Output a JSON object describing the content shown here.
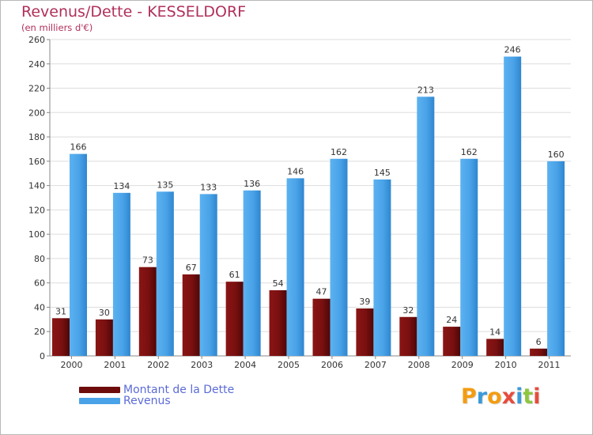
{
  "title": "Revenus/Dette - KESSELDORF",
  "subtitle": "(en milliers d'€)",
  "colors": {
    "title": "#b0305a",
    "dette": "#7a1010",
    "revenus": "#4aa3e8",
    "grid": "#dddddd",
    "legend_text": "#5b6bd6"
  },
  "legend": [
    {
      "label": "Montant de la Dette",
      "color": "#6e0c0c"
    },
    {
      "label": "Revenus",
      "color": "#4aa3e8"
    }
  ],
  "logo": {
    "text": "Proxiti",
    "letters": [
      {
        "ch": "P",
        "color": "#f39c12"
      },
      {
        "ch": "r",
        "color": "#3a9ad9"
      },
      {
        "ch": "o",
        "color": "#f39c12"
      },
      {
        "ch": "x",
        "color": "#e74c3c"
      },
      {
        "ch": "i",
        "color": "#3a9ad9"
      },
      {
        "ch": "t",
        "color": "#8dc63f"
      },
      {
        "ch": "i",
        "color": "#e74c3c"
      }
    ]
  },
  "chart_data": {
    "type": "bar",
    "title": "Revenus/Dette - KESSELDORF",
    "subtitle": "(en milliers d'€)",
    "categories": [
      "2000",
      "2001",
      "2002",
      "2003",
      "2004",
      "2005",
      "2006",
      "2007",
      "2008",
      "2009",
      "2010",
      "2011"
    ],
    "series": [
      {
        "name": "Montant de la Dette",
        "values": [
          31,
          30,
          73,
          67,
          61,
          54,
          47,
          39,
          32,
          24,
          14,
          6
        ]
      },
      {
        "name": "Revenus",
        "values": [
          166,
          134,
          135,
          133,
          136,
          146,
          162,
          145,
          213,
          162,
          246,
          160
        ]
      }
    ],
    "ylim": [
      0,
      260
    ],
    "yticks": [
      0,
      20,
      40,
      60,
      80,
      100,
      120,
      140,
      160,
      180,
      200,
      220,
      240,
      260
    ],
    "grid": true,
    "legend_position": "bottom-left"
  }
}
